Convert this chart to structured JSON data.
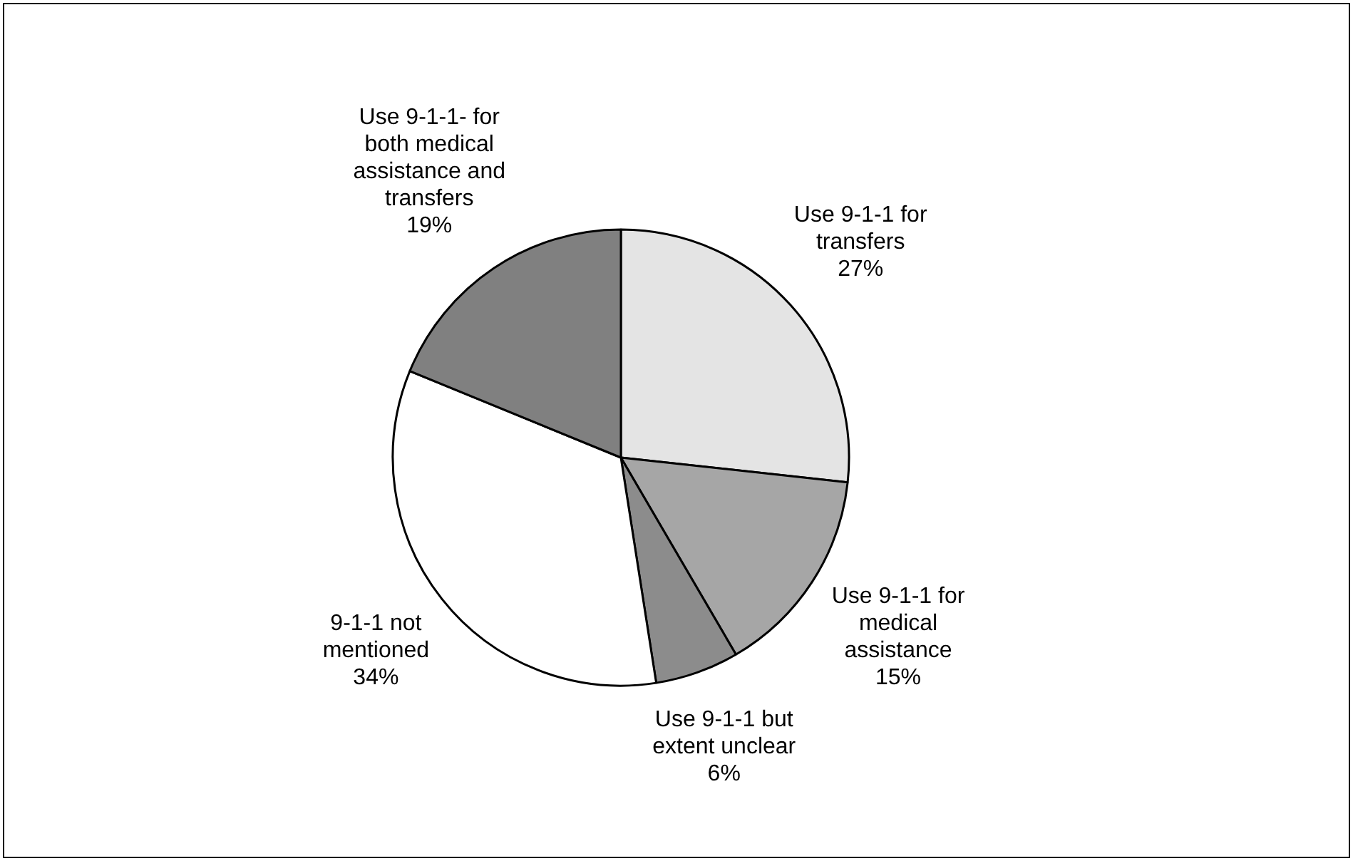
{
  "chart_data": {
    "type": "pie",
    "categories": [
      "Use 9-1-1 for transfers",
      "Use 9-1-1 for medical assistance",
      "Use 9-1-1 but extent unclear",
      "9-1-1 not mentioned",
      "Use 9-1-1- for both medical assistance and transfers"
    ],
    "values": [
      27,
      15,
      6,
      34,
      19
    ],
    "value_labels": [
      "27%",
      "15%",
      "6%",
      "34%",
      "19%"
    ],
    "colors": [
      "#e4e4e4",
      "#a6a6a6",
      "#8c8c8c",
      "#ffffff",
      "#808080"
    ],
    "legend": false
  }
}
